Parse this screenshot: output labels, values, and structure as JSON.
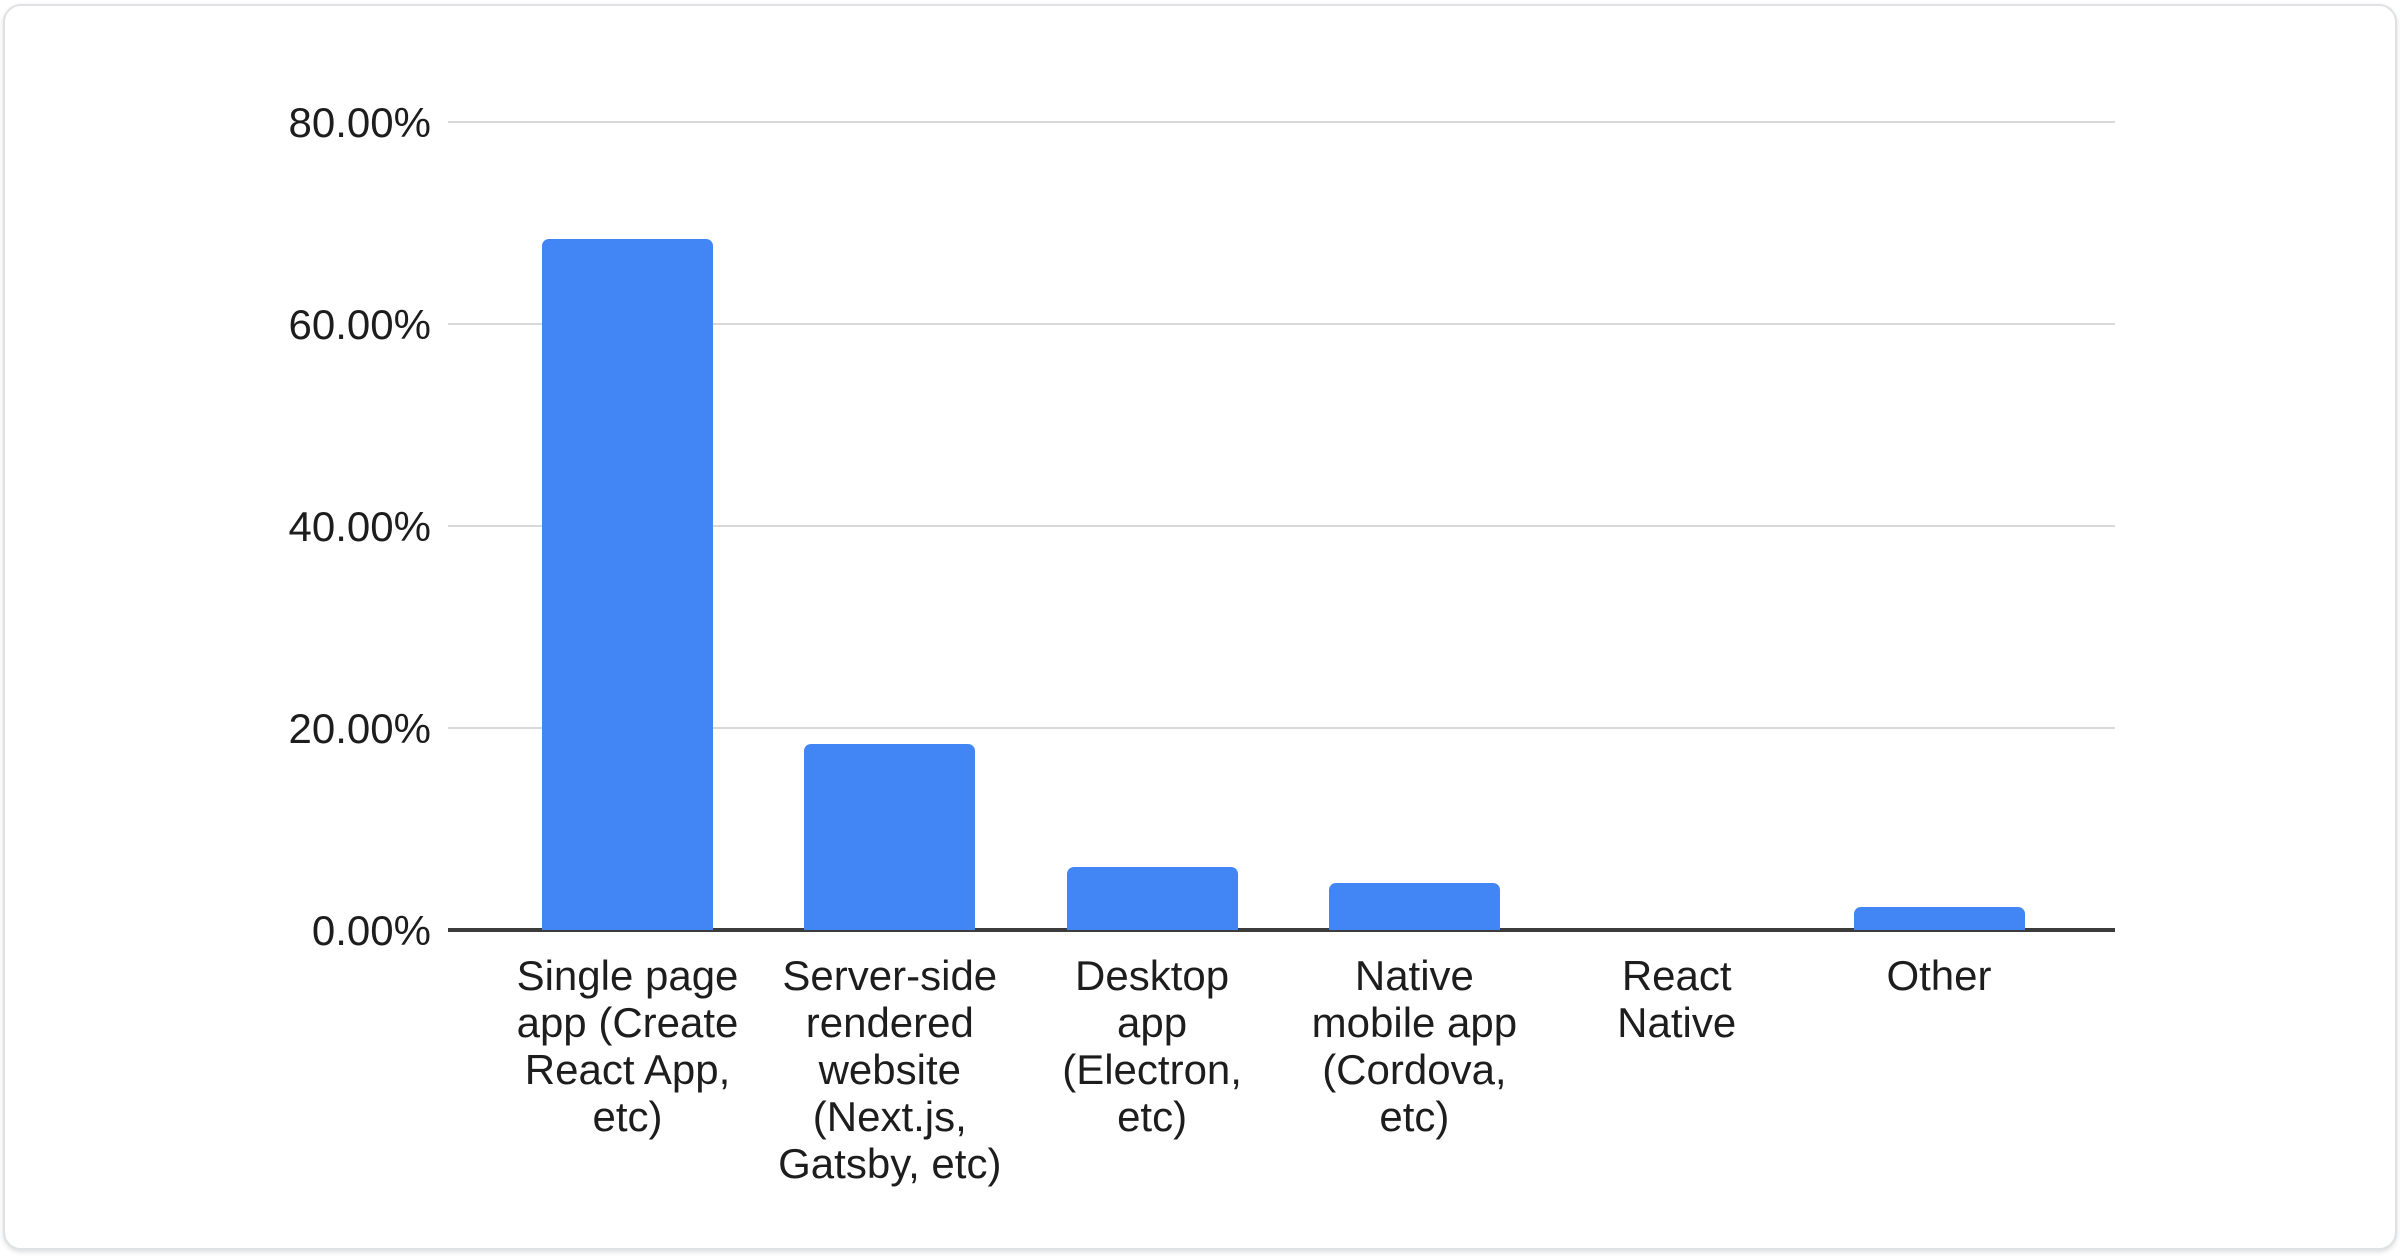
{
  "chart_data": {
    "type": "bar",
    "title": "",
    "xlabel": "",
    "ylabel": "",
    "categories": [
      "Single page\napp (Create\nReact App,\netc)",
      "Server-side\nrendered\nwebsite\n(Next.js,\nGatsby, etc)",
      "Desktop\napp\n(Electron,\netc)",
      "Native\nmobile app\n(Cordova,\netc)",
      "React\nNative",
      "Other"
    ],
    "values": [
      68.4,
      18.4,
      6.2,
      4.7,
      0,
      2.3
    ],
    "unit": "%",
    "ylim": [
      0,
      80
    ],
    "yticks": [
      {
        "value": 80,
        "label": "80.00%"
      },
      {
        "value": 60,
        "label": "60.00%"
      },
      {
        "value": 40,
        "label": "40.00%"
      },
      {
        "value": 20,
        "label": "20.00%"
      },
      {
        "value": 0,
        "label": "0.00%"
      }
    ],
    "grid": true,
    "legend_position": "none",
    "colors": {
      "bar": "#4285f4",
      "gridline": "#d9d9d9",
      "axis_line": "#3c3c3c",
      "tick_text": "#1d1d1d",
      "card_border": "#dfe1e5",
      "card_background": "#ffffff"
    }
  }
}
